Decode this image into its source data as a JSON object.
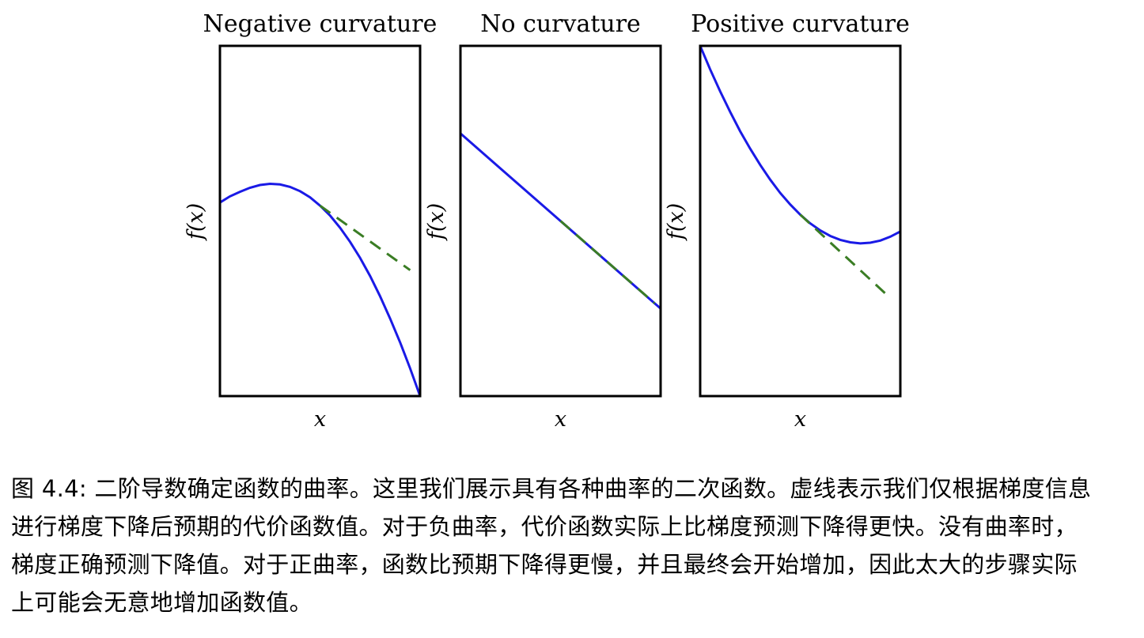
{
  "chart_data": [
    {
      "type": "line",
      "title": "Negative curvature",
      "xlabel": "x",
      "ylabel": "f(x)",
      "x": [
        0,
        0.05,
        0.1,
        0.15,
        0.2,
        0.25,
        0.3,
        0.35,
        0.4,
        0.45,
        0.5,
        0.55,
        0.6,
        0.65,
        0.7,
        0.75,
        0.8,
        0.85,
        0.9,
        0.95,
        1
      ],
      "series": [
        {
          "values": [
            0.49,
            0.51,
            0.525,
            0.538,
            0.547,
            0.551,
            0.549,
            0.541,
            0.527,
            0.507,
            0.48,
            0.448,
            0.408,
            0.362,
            0.31,
            0.251,
            0.185,
            0.113,
            0.035,
            -0.05,
            -0.14
          ]
        },
        {
          "line_style": "dashed",
          "x": [
            0.5,
            0.95
          ],
          "values": [
            0.48,
            0.27
          ]
        }
      ],
      "xlim": [
        0,
        1
      ],
      "ylim": [
        -0.14,
        1
      ],
      "grid": false,
      "colors": {
        "curve": "#1a1ae6",
        "tangent": "#3a7d24"
      }
    },
    {
      "type": "line",
      "title": "No curvature",
      "xlabel": "x",
      "ylabel": "f(x)",
      "x": [
        0,
        1
      ],
      "series": [
        {
          "values": [
            0.75,
            0.25
          ]
        },
        {
          "line_style": "dashed",
          "x": [
            0.5,
            0.97
          ],
          "values": [
            0.5,
            0.265
          ]
        }
      ],
      "xlim": [
        0,
        1
      ],
      "ylim": [
        0,
        1
      ],
      "grid": false,
      "colors": {
        "curve": "#1a1ae6",
        "tangent": "#3a7d24"
      }
    },
    {
      "type": "line",
      "title": "Positive curvature",
      "xlabel": "x",
      "ylabel": "f(x)",
      "x": [
        0,
        0.05,
        0.1,
        0.15,
        0.2,
        0.25,
        0.3,
        0.35,
        0.4,
        0.45,
        0.5,
        0.55,
        0.6,
        0.65,
        0.7,
        0.75,
        0.8,
        0.85,
        0.9,
        0.95,
        1
      ],
      "series": [
        {
          "values": [
            1,
            0.933,
            0.87,
            0.811,
            0.756,
            0.706,
            0.66,
            0.618,
            0.58,
            0.547,
            0.518,
            0.493,
            0.473,
            0.457,
            0.446,
            0.439,
            0.436,
            0.438,
            0.444,
            0.455,
            0.47
          ]
        },
        {
          "line_style": "dashed",
          "x": [
            0.5,
            0.95
          ],
          "values": [
            0.518,
            0.28
          ]
        }
      ],
      "xlim": [
        0,
        1
      ],
      "ylim": [
        0,
        1
      ],
      "grid": false,
      "colors": {
        "curve": "#1a1ae6",
        "tangent": "#3a7d24"
      }
    }
  ],
  "caption": "图 4.4: 二阶导数确定函数的曲率。这里我们展示具有各种曲率的二次函数。虚线表示我们仅根据梯度信息进行梯度下降后预期的代价函数值。对于负曲率，代价函数实际上比梯度预测下降得更快。没有曲率时，梯度正确预测下降值。对于正曲率，函数比预期下降得更慢，并且最终会开始增加，因此太大的步骤实际上可能会无意地增加函数值。"
}
